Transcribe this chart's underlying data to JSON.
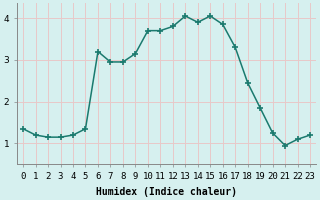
{
  "x": [
    0,
    1,
    2,
    3,
    4,
    5,
    6,
    7,
    8,
    9,
    10,
    11,
    12,
    13,
    14,
    15,
    16,
    17,
    18,
    19,
    20,
    21,
    22,
    23
  ],
  "y": [
    1.35,
    1.2,
    1.15,
    1.15,
    1.2,
    1.35,
    3.2,
    2.95,
    2.95,
    3.15,
    3.7,
    3.7,
    3.8,
    4.05,
    3.9,
    4.05,
    3.85,
    3.3,
    2.45,
    1.85,
    1.25,
    0.95,
    1.1,
    1.2
  ],
  "line_color": "#1a7a6e",
  "marker": "+",
  "markersize": 4,
  "markeredgewidth": 1.2,
  "linewidth": 1.1,
  "bg_color": "#d6f0ef",
  "grid_color": "#e8c8c8",
  "xlabel": "Humidex (Indice chaleur)",
  "xlim": [
    -0.5,
    23.5
  ],
  "ylim": [
    0.5,
    4.35
  ],
  "yticks": [
    1,
    2,
    3,
    4
  ],
  "xtick_labels": [
    "0",
    "1",
    "2",
    "3",
    "4",
    "5",
    "6",
    "7",
    "8",
    "9",
    "10",
    "11",
    "12",
    "13",
    "14",
    "15",
    "16",
    "17",
    "18",
    "19",
    "20",
    "21",
    "22",
    "23"
  ],
  "xlabel_fontsize": 7,
  "tick_fontsize": 6.5,
  "spine_color": "#888888"
}
